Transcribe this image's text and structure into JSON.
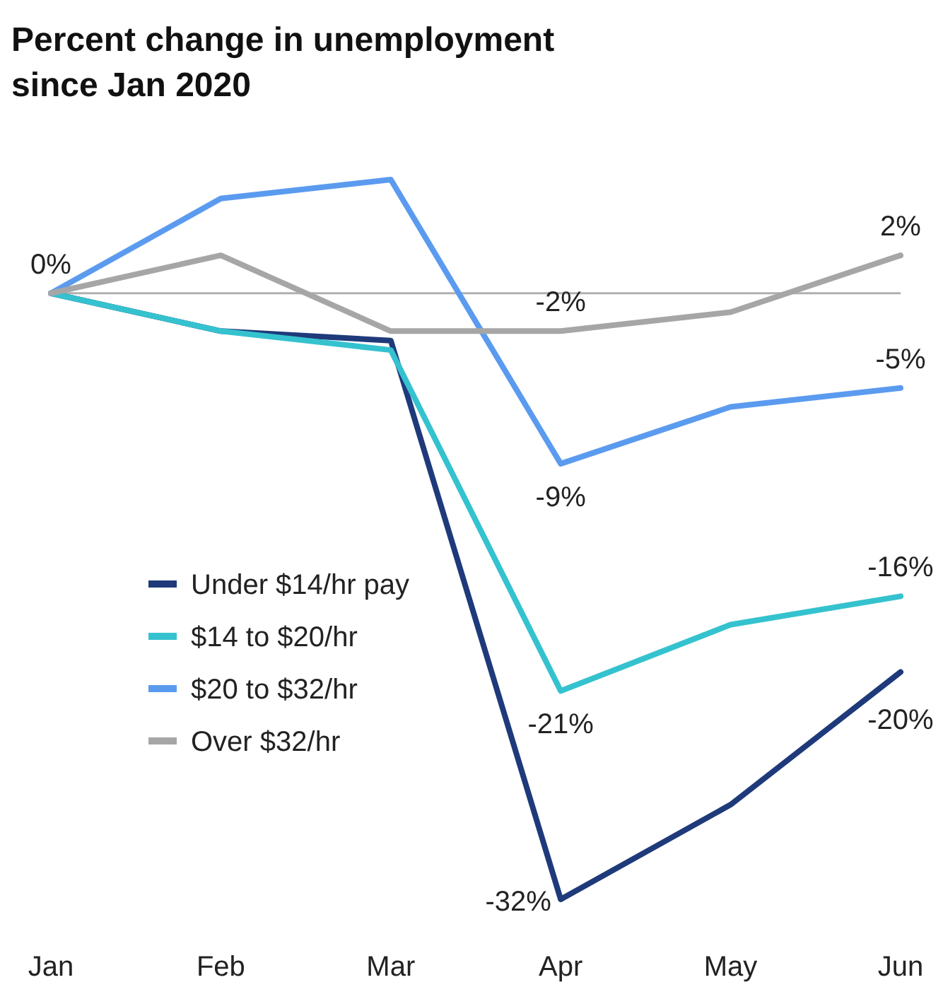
{
  "chart_data": {
    "type": "line",
    "title": "Percent change in unemployment since Jan 2020",
    "categories": [
      "Jan",
      "Feb",
      "Mar",
      "Apr",
      "May",
      "Jun"
    ],
    "series": [
      {
        "name": "Under $14/hr pay",
        "color": "#1f3a7a",
        "values": [
          0,
          -2,
          -2.5,
          -32,
          -27,
          -20
        ],
        "value_labels": [
          null,
          null,
          null,
          "-32%",
          null,
          "-20%"
        ]
      },
      {
        "name": "$14 to $20/hr",
        "color": "#35c2cf",
        "values": [
          0,
          -2,
          -3,
          -21,
          -17.5,
          -16
        ],
        "value_labels": [
          null,
          null,
          null,
          "-21%",
          null,
          "-16%"
        ]
      },
      {
        "name": "$20 to $32/hr",
        "color": "#5b9bef",
        "values": [
          0,
          5,
          6,
          -9,
          -6,
          -5
        ],
        "value_labels": [
          null,
          null,
          null,
          "-9%",
          null,
          "-5%"
        ]
      },
      {
        "name": "Over $32/hr",
        "color": "#a6a6a6",
        "values": [
          0,
          2,
          -2,
          -2,
          -1,
          2
        ],
        "value_labels": [
          "0%",
          null,
          null,
          "-2%",
          null,
          "2%"
        ]
      }
    ],
    "tick_labels": "x",
    "legend": "left",
    "marker": "none",
    "line_style": "solid",
    "ref_lines": [
      {
        "axis": "y",
        "value": 0,
        "color": "#b0b0b0"
      }
    ]
  }
}
